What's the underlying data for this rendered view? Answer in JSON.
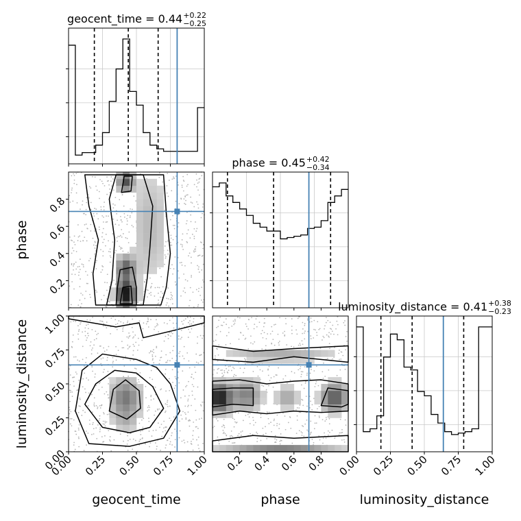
{
  "chart_data": {
    "type": "corner",
    "parameters": [
      {
        "name": "geocent_time",
        "label": "geocent_time",
        "range": [
          0.0,
          1.0
        ],
        "ticks": [
          "0.00",
          "0.25",
          "0.50",
          "0.75",
          "1.00"
        ],
        "tick_values": [
          0.0,
          0.25,
          0.5,
          0.75,
          1.0
        ],
        "title_main": "geocent_time = 0.44",
        "title_plus": "+0.22",
        "title_minus": "−0.25",
        "quantiles": [
          0.19,
          0.44,
          0.66
        ],
        "truth": 0.8
      },
      {
        "name": "phase",
        "label": "phase",
        "range": [
          0.0,
          1.0
        ],
        "ticks": [
          "0.2",
          "0.4",
          "0.6",
          "0.8"
        ],
        "tick_values": [
          0.2,
          0.4,
          0.6,
          0.8
        ],
        "title_main": "phase = 0.45",
        "title_plus": "+0.42",
        "title_minus": "−0.34",
        "quantiles": [
          0.11,
          0.45,
          0.87
        ],
        "truth": 0.71
      },
      {
        "name": "luminosity_distance",
        "label": "luminosity_distance",
        "range": [
          0.0,
          1.0
        ],
        "ticks": [
          "0.00",
          "0.25",
          "0.50",
          "0.75",
          "1.00"
        ],
        "tick_values": [
          0.0,
          0.25,
          0.5,
          0.75,
          1.0
        ],
        "title_main": "luminosity_distance = 0.41",
        "title_plus": "+0.38",
        "title_minus": "−0.23",
        "quantiles": [
          0.18,
          0.41,
          0.79
        ],
        "truth": 0.64
      }
    ],
    "histograms": {
      "geocent_time": [
        0.95,
        0.07,
        0.09,
        0.09,
        0.15,
        0.25,
        0.5,
        0.76,
        1.0,
        0.58,
        0.47,
        0.25,
        0.15,
        0.12,
        0.1,
        0.1,
        0.1,
        0.1,
        0.1,
        0.45
      ],
      "phase": [
        0.93,
        0.96,
        0.86,
        0.81,
        0.76,
        0.71,
        0.65,
        0.62,
        0.59,
        0.59,
        0.53,
        0.54,
        0.55,
        0.56,
        0.61,
        0.62,
        0.67,
        0.81,
        0.86,
        0.91
      ],
      "luminosity_distance": [
        0.87,
        0.14,
        0.16,
        0.25,
        0.66,
        0.82,
        0.78,
        0.59,
        0.57,
        0.42,
        0.39,
        0.26,
        0.2,
        0.14,
        0.12,
        0.13,
        0.14,
        0.16,
        0.87,
        0.87
      ]
    },
    "truth_point_color": "#4682b4",
    "grid": true
  }
}
